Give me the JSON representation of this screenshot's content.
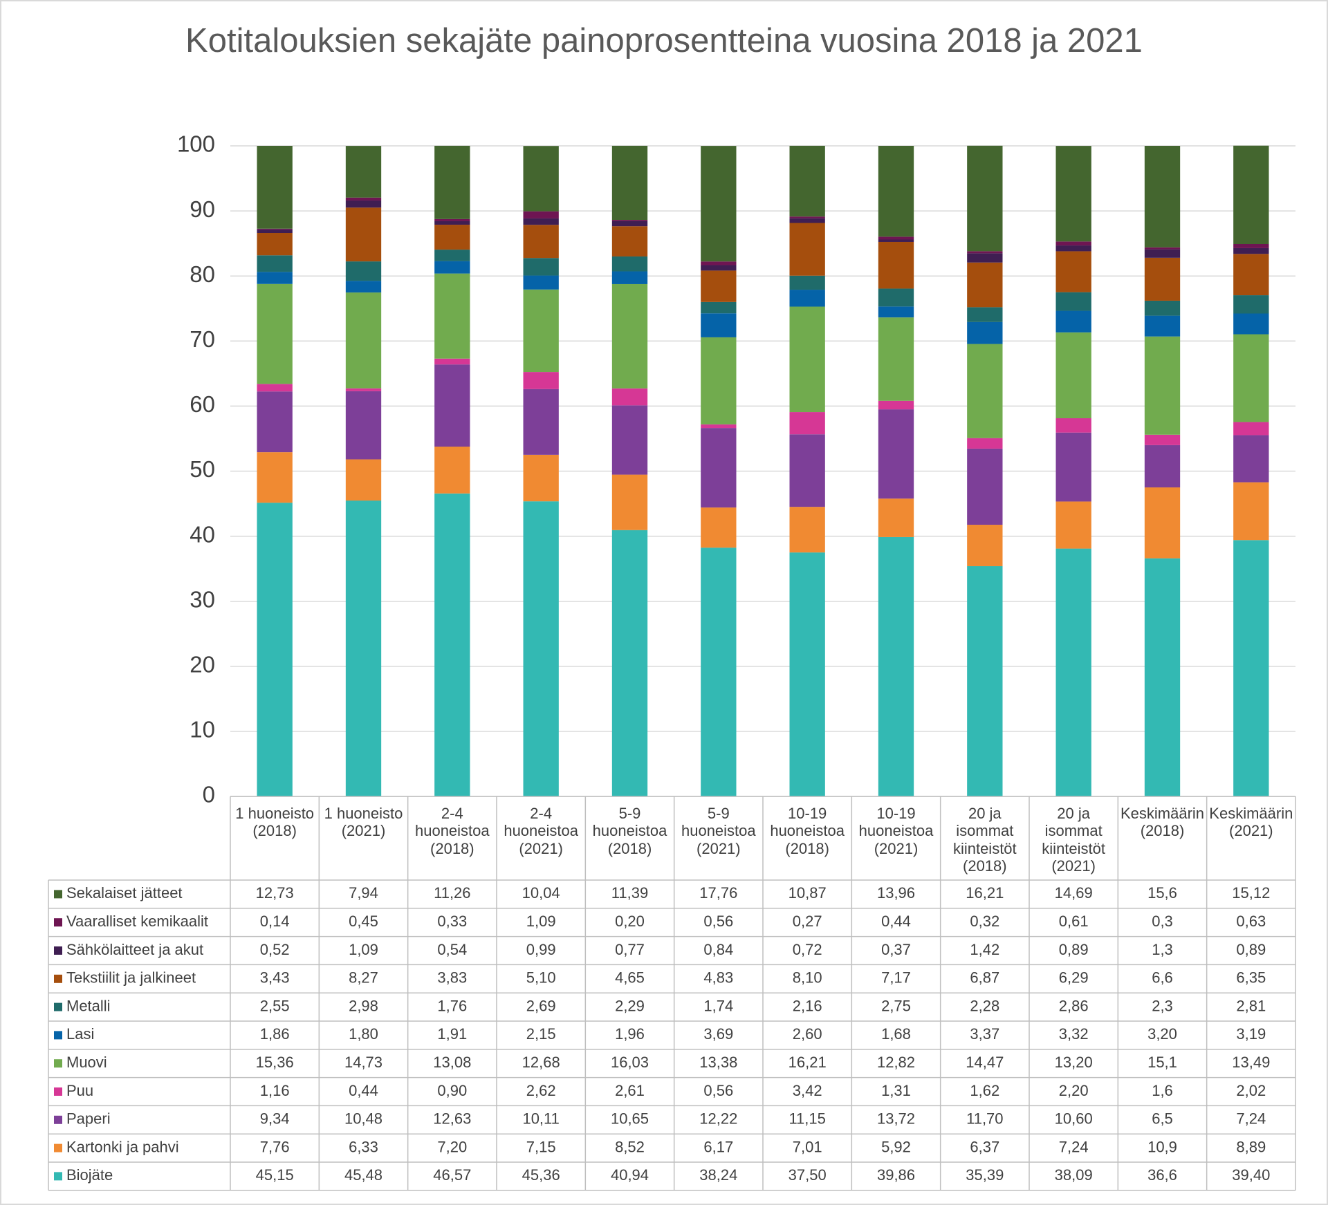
{
  "chart_data": {
    "type": "stacked-bar",
    "title": "Kotitalouksien sekajäte painoprosentteina vuosina 2018 ja 2021",
    "categories": [
      "1 huoneisto (2018)",
      "1 huoneisto (2021)",
      "2-4 huoneistoa (2018)",
      "2-4 huoneistoa (2021)",
      "5-9 huoneistoa (2018)",
      "5-9 huoneistoa (2021)",
      "10-19 huoneistoa (2018)",
      "10-19 huoneistoa (2021)",
      "20 ja isommat kiinteistöt (2018)",
      "20 ja isommat kiinteistöt (2021)",
      "Keskimäärin (2018)",
      "Keskimäärin (2021)"
    ],
    "ylim": [
      0,
      100
    ],
    "yticks": [
      0,
      10,
      20,
      30,
      40,
      50,
      60,
      70,
      80,
      90,
      100
    ],
    "grid": true,
    "series": [
      {
        "name": "Biojäte",
        "color": "#33b9b3",
        "values": [
          45.15,
          45.48,
          46.57,
          45.36,
          40.94,
          38.24,
          37.5,
          39.86,
          35.39,
          38.09,
          36.6,
          39.4
        ],
        "value_labels": [
          "45,15",
          "45,48",
          "46,57",
          "45,36",
          "40,94",
          "38,24",
          "37,50",
          "39,86",
          "35,39",
          "38,09",
          "36,6",
          "39,40"
        ]
      },
      {
        "name": "Kartonki ja pahvi",
        "color": "#f08a32",
        "values": [
          7.76,
          6.33,
          7.2,
          7.15,
          8.52,
          6.17,
          7.01,
          5.92,
          6.37,
          7.24,
          10.9,
          8.89
        ],
        "value_labels": [
          "7,76",
          "6,33",
          "7,20",
          "7,15",
          "8,52",
          "6,17",
          "7,01",
          "5,92",
          "6,37",
          "7,24",
          "10,9",
          "8,89"
        ]
      },
      {
        "name": "Paperi",
        "color": "#7d3f98",
        "values": [
          9.34,
          10.48,
          12.63,
          10.11,
          10.65,
          12.22,
          11.15,
          13.72,
          11.7,
          10.6,
          6.5,
          7.24
        ],
        "value_labels": [
          "9,34",
          "10,48",
          "12,63",
          "10,11",
          "10,65",
          "12,22",
          "11,15",
          "13,72",
          "11,70",
          "10,60",
          "6,5",
          "7,24"
        ]
      },
      {
        "name": "Puu",
        "color": "#d63795",
        "values": [
          1.16,
          0.44,
          0.9,
          2.62,
          2.61,
          0.56,
          3.42,
          1.31,
          1.62,
          2.2,
          1.6,
          2.02
        ],
        "value_labels": [
          "1,16",
          "0,44",
          "0,90",
          "2,62",
          "2,61",
          "0,56",
          "3,42",
          "1,31",
          "1,62",
          "2,20",
          "1,6",
          "2,02"
        ]
      },
      {
        "name": "Muovi",
        "color": "#71ab4e",
        "values": [
          15.36,
          14.73,
          13.08,
          12.68,
          16.03,
          13.38,
          16.21,
          12.82,
          14.47,
          13.2,
          15.1,
          13.49
        ],
        "value_labels": [
          "15,36",
          "14,73",
          "13,08",
          "12,68",
          "16,03",
          "13,38",
          "16,21",
          "12,82",
          "14,47",
          "13,20",
          "15,1",
          "13,49"
        ]
      },
      {
        "name": "Lasi",
        "color": "#0563a8",
        "values": [
          1.86,
          1.8,
          1.91,
          2.15,
          1.96,
          3.69,
          2.6,
          1.68,
          3.37,
          3.32,
          3.2,
          3.19
        ],
        "value_labels": [
          "1,86",
          "1,80",
          "1,91",
          "2,15",
          "1,96",
          "3,69",
          "2,60",
          "1,68",
          "3,37",
          "3,32",
          "3,20",
          "3,19"
        ]
      },
      {
        "name": "Metalli",
        "color": "#1f6b6a",
        "values": [
          2.55,
          2.98,
          1.76,
          2.69,
          2.29,
          1.74,
          2.16,
          2.75,
          2.28,
          2.86,
          2.3,
          2.81
        ],
        "value_labels": [
          "2,55",
          "2,98",
          "1,76",
          "2,69",
          "2,29",
          "1,74",
          "2,16",
          "2,75",
          "2,28",
          "2,86",
          "2,3",
          "2,81"
        ]
      },
      {
        "name": "Tekstiilit ja jalkineet",
        "color": "#a54e0d",
        "values": [
          3.43,
          8.27,
          3.83,
          5.1,
          4.65,
          4.83,
          8.1,
          7.17,
          6.87,
          6.29,
          6.6,
          6.35
        ],
        "value_labels": [
          "3,43",
          "8,27",
          "3,83",
          "5,10",
          "4,65",
          "4,83",
          "8,10",
          "7,17",
          "6,87",
          "6,29",
          "6,6",
          "6,35"
        ]
      },
      {
        "name": "Sähkölaitteet ja akut",
        "color": "#3f1e52",
        "values": [
          0.52,
          1.09,
          0.54,
          0.99,
          0.77,
          0.84,
          0.72,
          0.37,
          1.42,
          0.89,
          1.3,
          0.89
        ],
        "value_labels": [
          "0,52",
          "1,09",
          "0,54",
          "0,99",
          "0,77",
          "0,84",
          "0,72",
          "0,37",
          "1,42",
          "0,89",
          "1,3",
          "0,89"
        ]
      },
      {
        "name": "Vaaralliset kemikaalit",
        "color": "#6e1552",
        "values": [
          0.14,
          0.45,
          0.33,
          1.09,
          0.2,
          0.56,
          0.27,
          0.44,
          0.32,
          0.61,
          0.3,
          0.63
        ],
        "value_labels": [
          "0,14",
          "0,45",
          "0,33",
          "1,09",
          "0,20",
          "0,56",
          "0,27",
          "0,44",
          "0,32",
          "0,61",
          "0,3",
          "0,63"
        ]
      },
      {
        "name": "Sekalaiset jätteet",
        "color": "#44662f",
        "values": [
          12.73,
          7.94,
          11.26,
          10.04,
          11.39,
          17.76,
          10.87,
          13.96,
          16.21,
          14.69,
          15.6,
          15.12
        ],
        "value_labels": [
          "12,73",
          "7,94",
          "11,26",
          "10,04",
          "11,39",
          "17,76",
          "10,87",
          "13,96",
          "16,21",
          "14,69",
          "15,6",
          "15,12"
        ]
      }
    ]
  }
}
